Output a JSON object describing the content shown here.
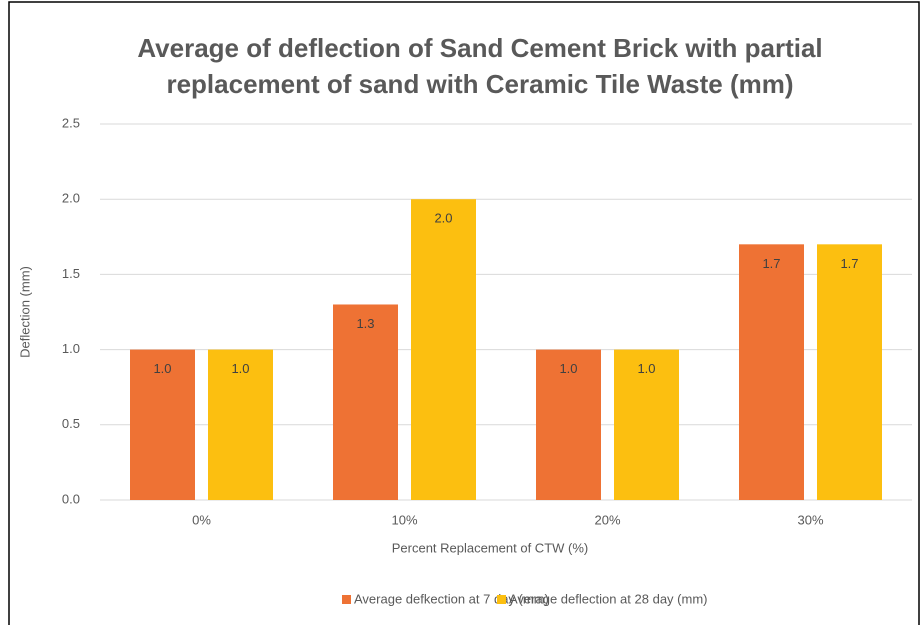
{
  "chart_data": {
    "type": "bar",
    "title": "Average of deflection of Sand Cement Brick with partial replacement of sand with Ceramic Tile Waste (mm)",
    "x_label": "Percent Replacement of CTW (%)",
    "y_label": "Deflection (mm)",
    "categories": [
      "0%",
      "10%",
      "20%",
      "30%"
    ],
    "series": [
      {
        "name": "Average defkection at 7 day (mm)",
        "color": "#ee7234",
        "values": [
          1.0,
          1.3,
          1.0,
          1.7
        ],
        "value_labels": [
          "1.0",
          "1.3",
          "1.0",
          "1.7"
        ]
      },
      {
        "name": "Average deflection at 28 day (mm)",
        "color": "#fcbf10",
        "values": [
          1.0,
          2.0,
          1.0,
          1.7
        ],
        "value_labels": [
          "1.0",
          "2.0",
          "1.0",
          "1.7"
        ]
      }
    ],
    "ylim": [
      0,
      2.5
    ],
    "yticks": [
      {
        "value": 0,
        "label": "0.0"
      },
      {
        "value": 0.5,
        "label": "0.5"
      },
      {
        "value": 1,
        "label": "1.0"
      },
      {
        "value": 1.5,
        "label": "1.5"
      },
      {
        "value": 2,
        "label": "2.0"
      },
      {
        "value": 2.5,
        "label": "2.5"
      }
    ],
    "grid": true,
    "legend": "bottom"
  }
}
